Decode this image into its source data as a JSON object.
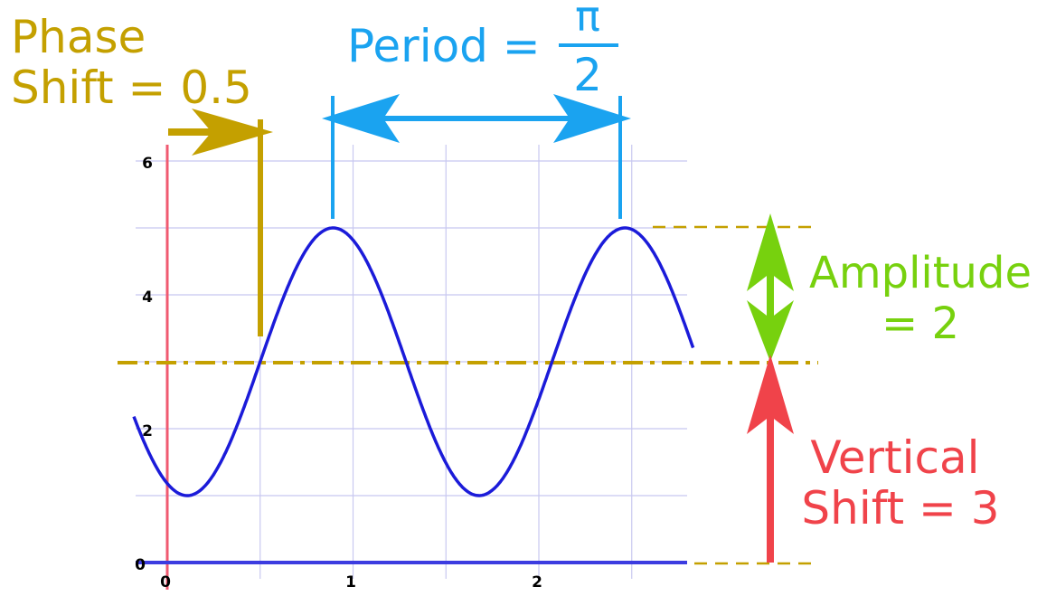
{
  "colors": {
    "phase": "#C4A000",
    "period": "#1AA3F0",
    "amplitude": "#77D10E",
    "vertical": "#F0434A",
    "curve": "#1B1BD9",
    "grid": "#C8C8F0",
    "axis_y": "#F05A70",
    "axis_x": "#3C3CE0"
  },
  "labels": {
    "phase_line1": "Phase",
    "phase_line2": "Shift = 0.5",
    "period_text": "Period  =",
    "period_numerator": "π",
    "period_denominator": "2",
    "amplitude_line1": "Amplitude",
    "amplitude_line2": "= 2",
    "vertical_line1": "Vertical",
    "vertical_line2": "Shift = 3"
  },
  "chart_data": {
    "type": "line",
    "function": "y = 3 + 2*sin(4*(x - 0.5))",
    "x_range": [
      -0.18,
      2.83
    ],
    "ylim": [
      0,
      6
    ],
    "x_ticks": [
      "0",
      "1",
      "2"
    ],
    "y_ticks": [
      "0",
      "2",
      "4",
      "6"
    ],
    "phase_shift": 0.5,
    "period": "π/2",
    "amplitude": 2,
    "vertical_shift": 3,
    "midline": 3,
    "peaks": [
      0.893,
      2.464
    ],
    "trough": 0.107
  }
}
